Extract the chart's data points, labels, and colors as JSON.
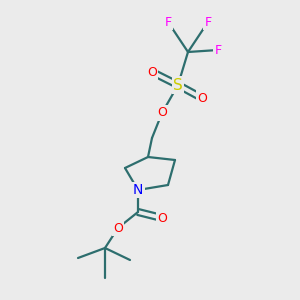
{
  "background_color": "#ebebeb",
  "bond_color": "#2d6e6e",
  "atom_colors": {
    "F": "#ff00ff",
    "S": "#cccc00",
    "O": "#ff0000",
    "N": "#0000ff",
    "C": "#2d6e6e"
  },
  "figsize": [
    3.0,
    3.0
  ],
  "dpi": 100
}
